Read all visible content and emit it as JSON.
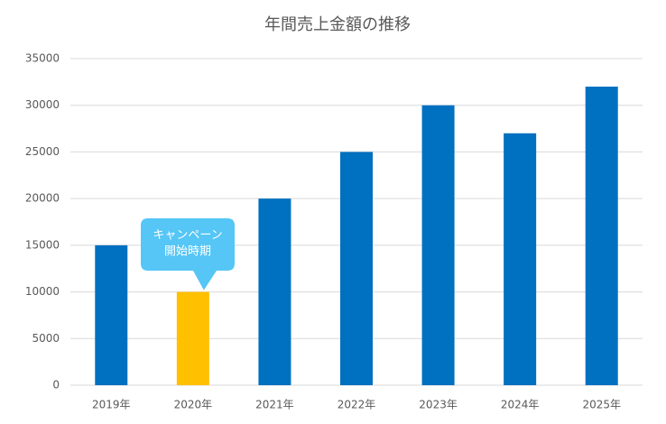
{
  "chart_data": {
    "type": "bar",
    "title": "年間売上金額の推移",
    "categories": [
      "2019年",
      "2020年",
      "2021年",
      "2022年",
      "2023年",
      "2024年",
      "2025年"
    ],
    "values": [
      15000,
      10000,
      20000,
      25000,
      30000,
      27000,
      32000
    ],
    "colors": [
      "#0070c0",
      "#ffc000",
      "#0070c0",
      "#0070c0",
      "#0070c0",
      "#0070c0",
      "#0070c0"
    ],
    "ylim": [
      0,
      35000
    ],
    "yticks": [
      0,
      5000,
      10000,
      15000,
      20000,
      25000,
      30000,
      35000
    ],
    "grid": true,
    "annotation": {
      "lines": [
        "キャンペーン",
        "開始時期"
      ],
      "color": "#55c6f6"
    }
  }
}
